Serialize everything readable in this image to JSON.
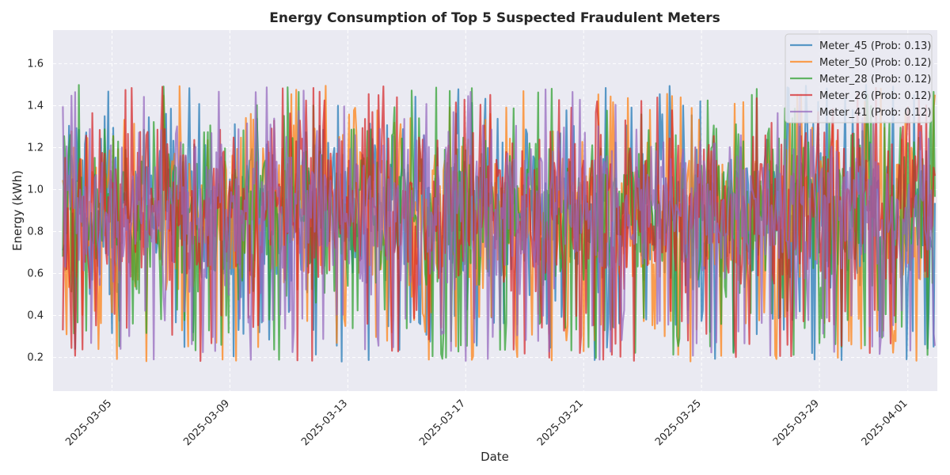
{
  "chart_data": {
    "type": "line",
    "title": "Energy Consumption of Top 5 Suspected Fraudulent Meters",
    "xlabel": "Date",
    "ylabel": "Energy (kWh)",
    "x_range": [
      "2025-03-03T00:00",
      "2025-04-02T00:00"
    ],
    "x_ticks": [
      "2025-03-05",
      "2025-03-09",
      "2025-03-13",
      "2025-03-17",
      "2025-03-21",
      "2025-03-25",
      "2025-03-29",
      "2025-04-01"
    ],
    "ylim": [
      0.04,
      1.76
    ],
    "y_ticks": [
      "0.2",
      "0.4",
      "0.6",
      "0.8",
      "1.0",
      "1.2",
      "1.4",
      "1.6"
    ],
    "grid": true,
    "legend_position": "top-right",
    "background": "#eaeaf2",
    "sampling_interval_hours": 1,
    "start": "2025-03-03T00:00",
    "series": [
      {
        "name": "Meter_45 (Prob: 0.13)",
        "color": "#1f77b4",
        "seed": 45
      },
      {
        "name": "Meter_50 (Prob: 0.12)",
        "color": "#ff7f0e",
        "seed": 50
      },
      {
        "name": "Meter_28 (Prob: 0.12)",
        "color": "#2ca02c",
        "seed": 28
      },
      {
        "name": "Meter_26 (Prob: 0.12)",
        "color": "#d62728",
        "seed": 26
      },
      {
        "name": "Meter_41 (Prob: 0.12)",
        "color": "#9467bd",
        "seed": 41
      }
    ]
  }
}
